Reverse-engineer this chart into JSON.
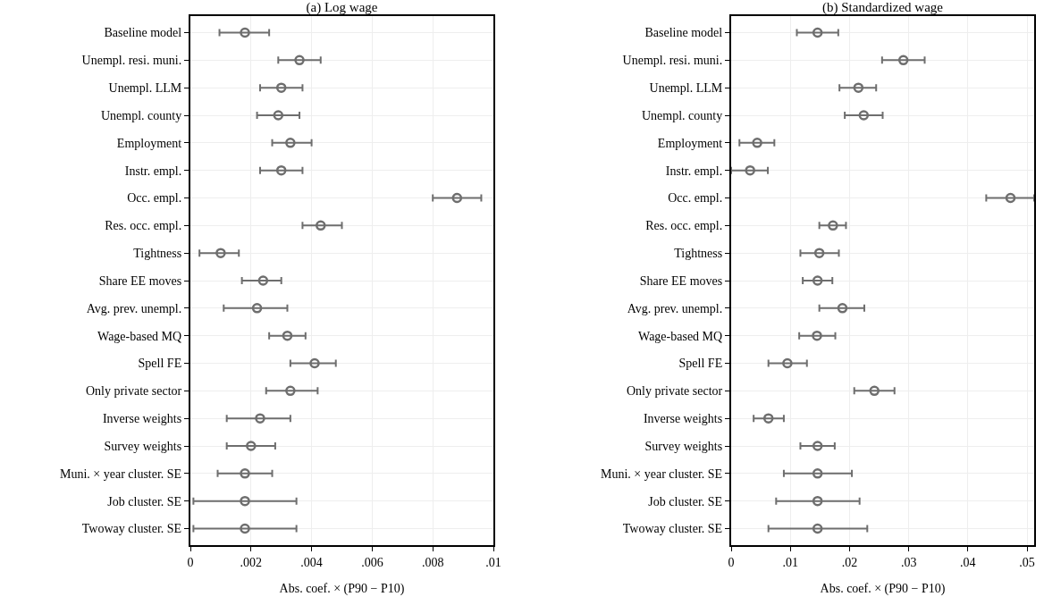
{
  "chart_data": [
    {
      "type": "scatter",
      "orientation": "horizontal",
      "title": "(a) Log wage",
      "xlabel": "Abs. coef. × (P90 − P10)",
      "categories": [
        "Baseline model",
        "Unempl. resi. muni.",
        "Unempl. LLM",
        "Unempl. county",
        "Employment",
        "Instr. empl.",
        "Occ. empl.",
        "Res. occ. empl.",
        "Tightness",
        "Share EE moves",
        "Avg. prev. unempl.",
        "Wage-based MQ",
        "Spell FE",
        "Only private sector",
        "Inverse weights",
        "Survey weights",
        "Muni. × year cluster. SE",
        "Job cluster. SE",
        "Twoway cluster. SE"
      ],
      "series": [
        {
          "color": "#6e6e6e",
          "values": [
            0.0018,
            0.0036,
            0.003,
            0.0029,
            0.0033,
            0.003,
            0.0088,
            0.0043,
            0.001,
            0.0024,
            0.0022,
            0.0032,
            0.0041,
            0.0033,
            0.0023,
            0.002,
            0.0018,
            0.0018,
            0.0018
          ],
          "errors": [
            [
              0.00096,
              0.0026
            ],
            [
              0.0029,
              0.0043
            ],
            [
              0.0023,
              0.0037
            ],
            [
              0.0022,
              0.0036
            ],
            [
              0.0027,
              0.004
            ],
            [
              0.0023,
              0.0037
            ],
            [
              0.008,
              0.0096
            ],
            [
              0.0037,
              0.005
            ],
            [
              0.0003,
              0.0016
            ],
            [
              0.0017,
              0.003
            ],
            [
              0.0011,
              0.0032
            ],
            [
              0.0026,
              0.0038
            ],
            [
              0.0033,
              0.0048
            ],
            [
              0.0025,
              0.0042
            ],
            [
              0.0012,
              0.0033
            ],
            [
              0.0012,
              0.0028
            ],
            [
              0.0009,
              0.0027
            ],
            [
              0.0001,
              0.0035
            ],
            [
              0.0001,
              0.0035
            ]
          ]
        }
      ],
      "xlim": [
        0,
        0.01
      ],
      "xticks": [
        0,
        {
          "value": 0.002,
          "label": ".002"
        },
        {
          "value": 0.004,
          "label": ".004"
        },
        {
          "value": 0.006,
          "label": ".006"
        },
        {
          "value": 0.008,
          "label": ".008"
        },
        {
          "value": 0.01,
          "label": ".01"
        }
      ],
      "grid": true,
      "marker": "circle"
    },
    {
      "type": "scatter",
      "orientation": "horizontal",
      "title": "(b) Standardized wage",
      "xlabel": "Abs. coef. × (P90 − P10)",
      "categories": [
        "Baseline model",
        "Unempl. resi. muni.",
        "Unempl. LLM",
        "Unempl. county",
        "Employment",
        "Instr. empl.",
        "Occ. empl.",
        "Res. occ. empl.",
        "Tightness",
        "Share EE moves",
        "Avg. prev. unempl.",
        "Wage-based MQ",
        "Spell FE",
        "Only private sector",
        "Inverse weights",
        "Survey weights",
        "Muni. × year cluster. SE",
        "Job cluster. SE",
        "Twoway cluster. SE"
      ],
      "series": [
        {
          "color": "#6e6e6e",
          "values": [
            0.0146,
            0.0291,
            0.0215,
            0.0224,
            0.0044,
            0.0032,
            0.0472,
            0.0172,
            0.0149,
            0.0146,
            0.0188,
            0.0145,
            0.0095,
            0.0242,
            0.0063,
            0.0146,
            0.0146,
            0.0146,
            0.0146
          ],
          "errors": [
            [
              0.0111,
              0.0181
            ],
            [
              0.0255,
              0.0327
            ],
            [
              0.0183,
              0.0245
            ],
            [
              0.0192,
              0.0256
            ],
            [
              0.0014,
              0.0073
            ],
            [
              0.0,
              0.0062
            ],
            [
              0.0431,
              0.0512
            ],
            [
              0.0149,
              0.0194
            ],
            [
              0.0117,
              0.0182
            ],
            [
              0.0121,
              0.0171
            ],
            [
              0.0149,
              0.0225
            ],
            [
              0.0115,
              0.0176
            ],
            [
              0.0063,
              0.0128
            ],
            [
              0.0208,
              0.0276
            ],
            [
              0.0038,
              0.0089
            ],
            [
              0.0117,
              0.0175
            ],
            [
              0.0089,
              0.0204
            ],
            [
              0.0076,
              0.0217
            ],
            [
              0.0063,
              0.023
            ]
          ]
        }
      ],
      "xlim": [
        0,
        0.0512
      ],
      "xticks": [
        0,
        {
          "value": 0.01,
          "label": ".01"
        },
        {
          "value": 0.02,
          "label": ".02"
        },
        {
          "value": 0.03,
          "label": ".03"
        },
        {
          "value": 0.04,
          "label": ".04"
        },
        {
          "value": 0.05,
          "label": ".05"
        }
      ],
      "grid": true,
      "marker": "circle"
    }
  ]
}
